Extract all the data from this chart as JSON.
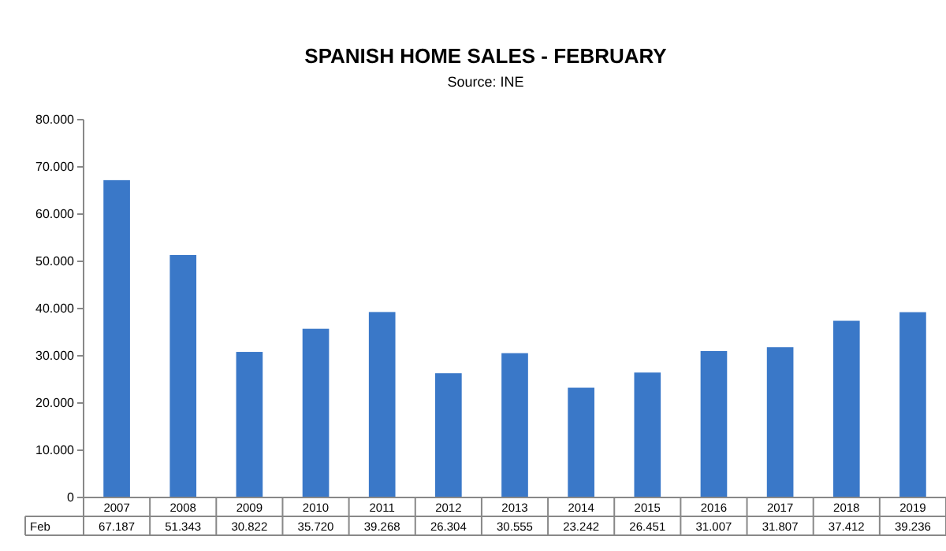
{
  "chart_data": {
    "type": "bar",
    "title": "SPANISH HOME SALES - FEBRUARY",
    "subtitle": "Source: INE",
    "categories": [
      "2007",
      "2008",
      "2009",
      "2010",
      "2011",
      "2012",
      "2013",
      "2014",
      "2015",
      "2016",
      "2017",
      "2018",
      "2019"
    ],
    "series": [
      {
        "name": "Feb",
        "color": "#3a78c8",
        "values": [
          67187,
          51343,
          30822,
          35720,
          39268,
          26304,
          30555,
          23242,
          26451,
          31007,
          31807,
          37412,
          39236
        ],
        "value_labels": [
          "67.187",
          "51.343",
          "30.822",
          "35.720",
          "39.268",
          "26.304",
          "30.555",
          "23.242",
          "26.451",
          "31.007",
          "31.807",
          "37.412",
          "39.236"
        ]
      }
    ],
    "ylim": [
      0,
      80000
    ],
    "yticks": [
      {
        "value": 0,
        "label": "0"
      },
      {
        "value": 10000,
        "label": "10.000"
      },
      {
        "value": 20000,
        "label": "20.000"
      },
      {
        "value": 30000,
        "label": "30.000"
      },
      {
        "value": 40000,
        "label": "40.000"
      },
      {
        "value": 50000,
        "label": "50.000"
      },
      {
        "value": 60000,
        "label": "60.000"
      },
      {
        "value": 70000,
        "label": "70.000"
      },
      {
        "value": 80000,
        "label": "80.000"
      }
    ],
    "grid": false,
    "legend": false
  }
}
